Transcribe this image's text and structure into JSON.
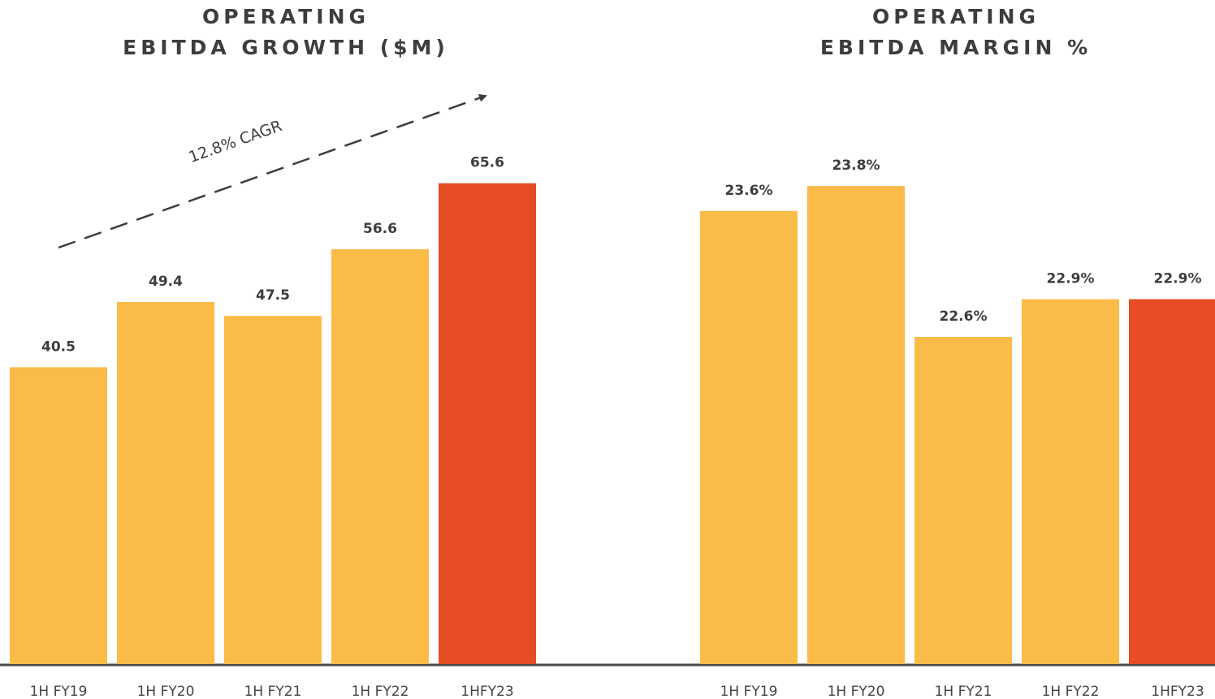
{
  "chart_data": [
    {
      "type": "bar",
      "title": [
        "OPERATING",
        "EBITDA GROWTH ($M)"
      ],
      "categories": [
        "1H FY19",
        "1H FY20",
        "1H FY21",
        "1H FY22",
        "1HFY23"
      ],
      "values": [
        40.5,
        49.4,
        47.5,
        56.6,
        65.6
      ],
      "colors": [
        "#fbbb48",
        "#fbbb48",
        "#fbbb48",
        "#fbbb48",
        "#e64c25"
      ],
      "ylim": [
        0,
        70
      ],
      "annotation": "12.8% CAGR"
    },
    {
      "type": "bar",
      "title": [
        "OPERATING",
        "EBITDA MARGIN %"
      ],
      "categories": [
        "1H FY19",
        "1H FY20",
        "1H FY21",
        "1H FY22",
        "1HFY23"
      ],
      "values": [
        23.6,
        23.8,
        22.6,
        22.9,
        22.9
      ],
      "value_labels": [
        "23.6%",
        "23.8%",
        "22.6%",
        "22.9%",
        "22.9%"
      ],
      "colors": [
        "#fbbb48",
        "#fbbb48",
        "#fbbb48",
        "#fbbb48",
        "#e64c25"
      ],
      "ylim": [
        20,
        24
      ]
    }
  ]
}
